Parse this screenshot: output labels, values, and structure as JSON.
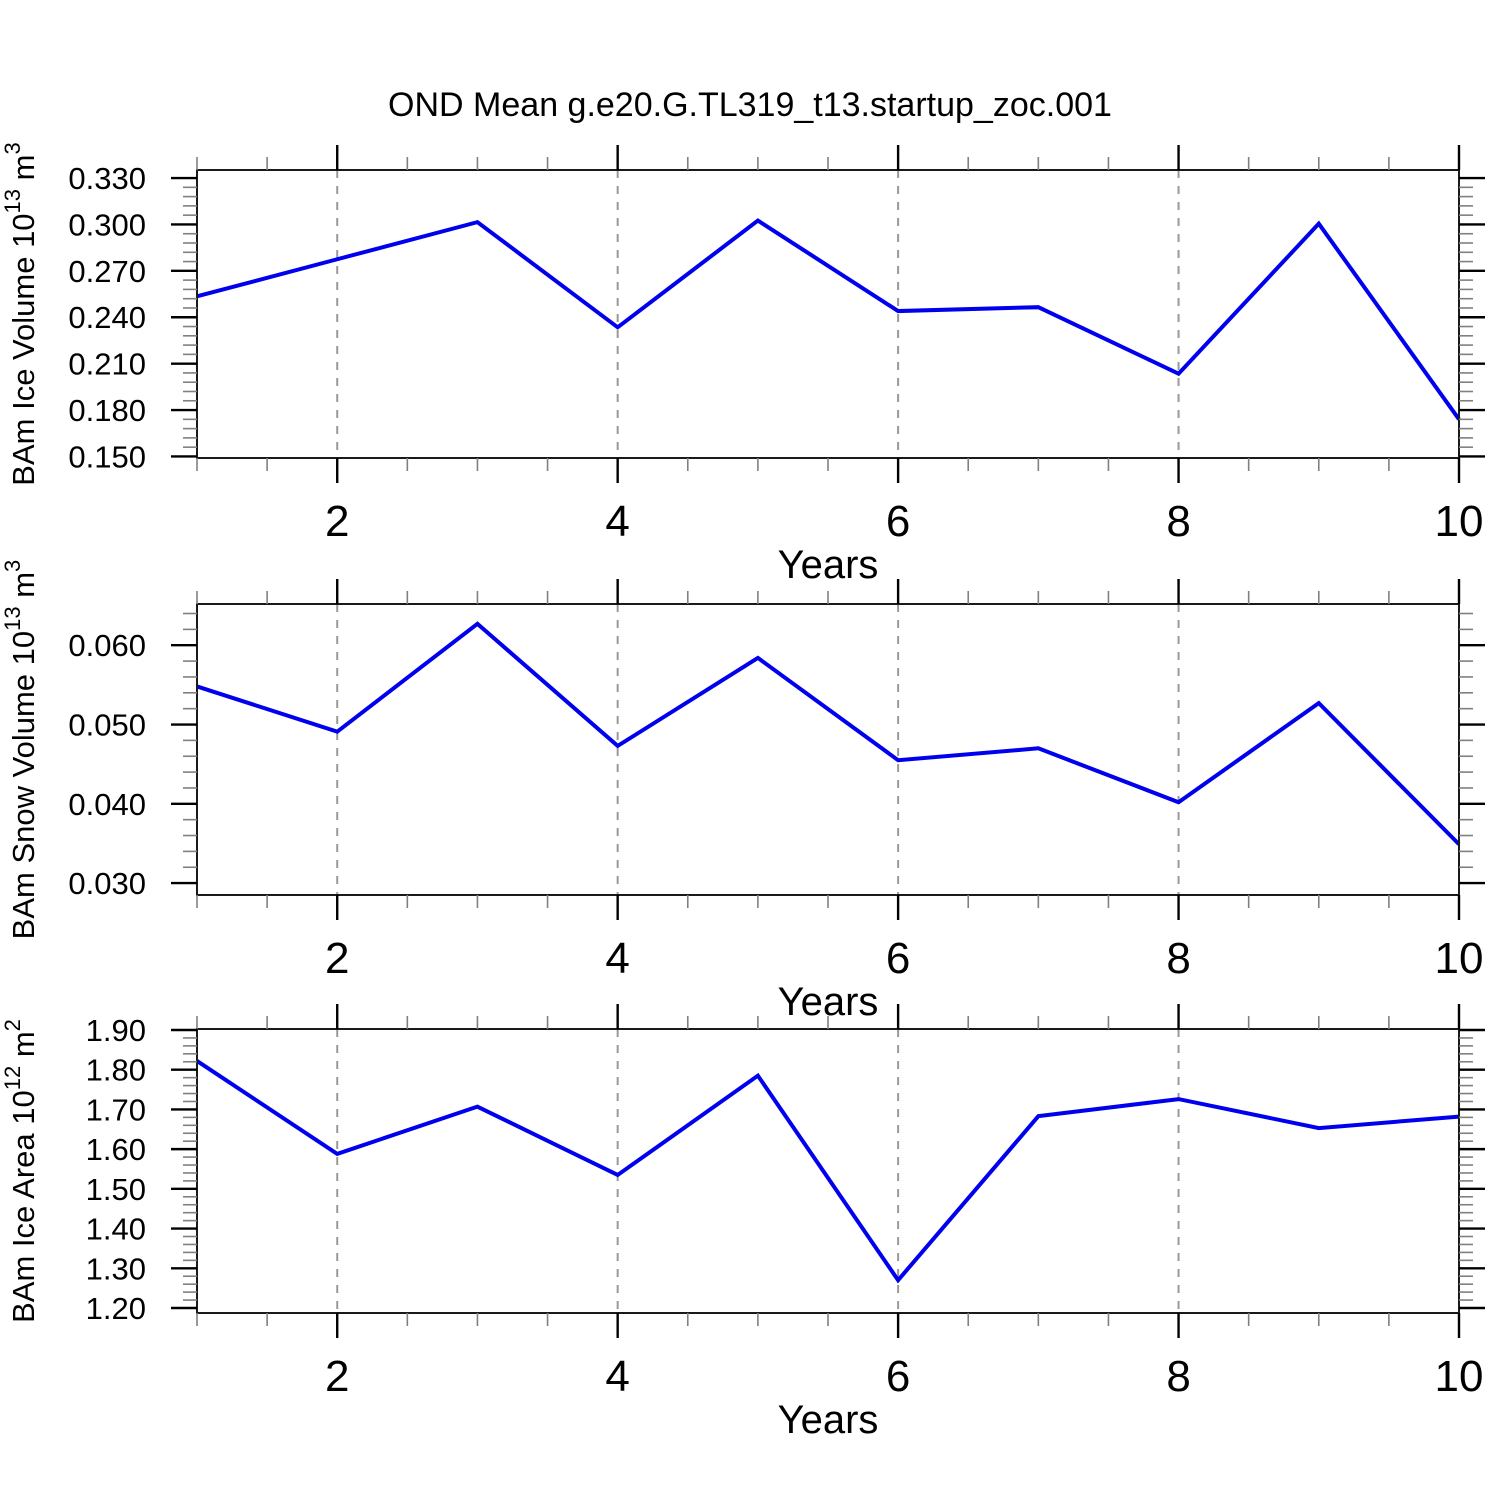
{
  "title": "OND Mean g.e20.G.TL319_t13.startup_zoc.001",
  "colors": {
    "line": "#0000ee",
    "grid": "#999999",
    "axis": "#1a1a1a",
    "tick_major": "#000000",
    "tick_minor": "#808080",
    "text": "#000000",
    "background": "#ffffff"
  },
  "chart_data": [
    {
      "type": "line",
      "name": "ice-volume",
      "ylabel_text": "BAm Ice Volume 10^13 m^3",
      "ylabel_segments": [
        [
          "t",
          "BAm Ice Volume 10"
        ],
        [
          "s",
          "13"
        ],
        [
          "t",
          " m"
        ],
        [
          "s",
          "3"
        ]
      ],
      "xlabel": "Years",
      "x": [
        1,
        2,
        3,
        4,
        5,
        6,
        7,
        8,
        9,
        10
      ],
      "values": [
        0.2535,
        0.2775,
        0.3015,
        0.2335,
        0.3025,
        0.244,
        0.2465,
        0.2035,
        0.3005,
        0.174
      ],
      "xlim": [
        1,
        10
      ],
      "ylim": [
        0.149,
        0.3352
      ],
      "xtick_major": [
        2,
        4,
        6,
        8,
        10
      ],
      "xtick_labels": [
        "2",
        "4",
        "6",
        "8",
        "10"
      ],
      "xtick_minor_step": 0.5,
      "yticks": [
        {
          "v": 0.33,
          "label": "0.330"
        },
        {
          "v": 0.3,
          "label": "0.300"
        },
        {
          "v": 0.27,
          "label": "0.270"
        },
        {
          "v": 0.24,
          "label": "0.240"
        },
        {
          "v": 0.21,
          "label": "0.210"
        },
        {
          "v": 0.18,
          "label": "0.180"
        },
        {
          "v": 0.15,
          "label": "0.150"
        }
      ],
      "ytick_minor_step": 0.006,
      "grid_x": [
        2,
        4,
        6,
        8
      ],
      "grid_style": "dashed",
      "legend": "none"
    },
    {
      "type": "line",
      "name": "snow-volume",
      "ylabel_text": "BAm Snow Volume 10^13 m^3",
      "ylabel_segments": [
        [
          "t",
          "BAm Snow Volume 10"
        ],
        [
          "s",
          "13"
        ],
        [
          "t",
          " m"
        ],
        [
          "s",
          "3"
        ]
      ],
      "xlabel": "Years",
      "x": [
        1,
        2,
        3,
        4,
        5,
        6,
        7,
        8,
        9,
        10
      ],
      "values": [
        0.0548,
        0.0491,
        0.0627,
        0.0473,
        0.0584,
        0.0455,
        0.047,
        0.0402,
        0.0527,
        0.0349
      ],
      "xlim": [
        1,
        10
      ],
      "ylim": [
        0.0285,
        0.0652
      ],
      "xtick_major": [
        2,
        4,
        6,
        8,
        10
      ],
      "xtick_labels": [
        "2",
        "4",
        "6",
        "8",
        "10"
      ],
      "xtick_minor_step": 0.5,
      "yticks": [
        {
          "v": 0.06,
          "label": "0.060"
        },
        {
          "v": 0.05,
          "label": "0.050"
        },
        {
          "v": 0.04,
          "label": "0.040"
        },
        {
          "v": 0.03,
          "label": "0.030"
        }
      ],
      "ytick_minor_step": 0.002,
      "grid_x": [
        2,
        4,
        6,
        8
      ],
      "grid_style": "dashed",
      "legend": "none"
    },
    {
      "type": "line",
      "name": "ice-area",
      "ylabel_text": "BAm Ice Area 10^12 m^2",
      "ylabel_segments": [
        [
          "t",
          "BAm Ice Area 10"
        ],
        [
          "s",
          "12"
        ],
        [
          "t",
          " m"
        ],
        [
          "s",
          "2"
        ]
      ],
      "xlabel": "Years",
      "x": [
        1,
        2,
        3,
        4,
        5,
        6,
        7,
        8,
        9,
        10
      ],
      "values": [
        1.822,
        1.588,
        1.707,
        1.535,
        1.785,
        1.27,
        1.683,
        1.726,
        1.653,
        1.682
      ],
      "xlim": [
        1,
        10
      ],
      "ylim": [
        1.1874,
        1.9025
      ],
      "xtick_major": [
        2,
        4,
        6,
        8,
        10
      ],
      "xtick_labels": [
        "2",
        "4",
        "6",
        "8",
        "10"
      ],
      "xtick_minor_step": 0.5,
      "yticks": [
        {
          "v": 1.9,
          "label": "1.90"
        },
        {
          "v": 1.8,
          "label": "1.80"
        },
        {
          "v": 1.7,
          "label": "1.70"
        },
        {
          "v": 1.6,
          "label": "1.60"
        },
        {
          "v": 1.5,
          "label": "1.50"
        },
        {
          "v": 1.4,
          "label": "1.40"
        },
        {
          "v": 1.3,
          "label": "1.30"
        },
        {
          "v": 1.2,
          "label": "1.20"
        }
      ],
      "ytick_minor_step": 0.02,
      "grid_x": [
        2,
        4,
        6,
        8
      ],
      "grid_style": "dashed",
      "legend": "none"
    }
  ]
}
